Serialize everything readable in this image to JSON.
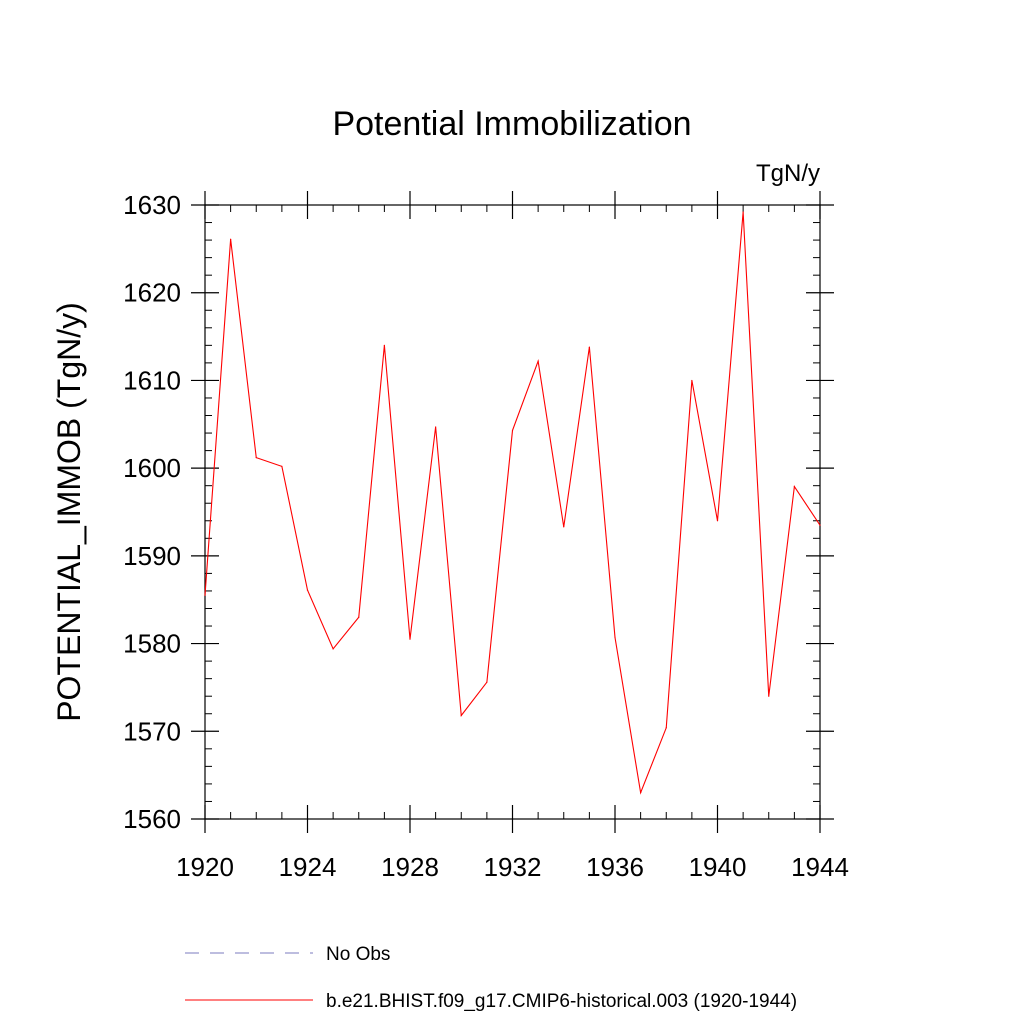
{
  "chart_data": {
    "type": "line",
    "title": "Potential Immobilization",
    "units_label": "TgN/y",
    "xlabel": "",
    "ylabel": "POTENTIAL_IMMOB  (TgN/y)",
    "xlim": [
      1920,
      1944
    ],
    "ylim": [
      1560,
      1630
    ],
    "x_ticks": [
      1920,
      1924,
      1928,
      1932,
      1936,
      1940,
      1944
    ],
    "y_ticks": [
      1560,
      1570,
      1580,
      1590,
      1600,
      1610,
      1620,
      1630
    ],
    "grid": false,
    "series": [
      {
        "name": "b.e21.BHIST.f09_g17.CMIP6-historical.003 (1920-1944)",
        "color": "#ff0000",
        "dash": "solid",
        "x": [
          1920,
          1921,
          1922,
          1923,
          1924,
          1925,
          1926,
          1927,
          1928,
          1929,
          1930,
          1931,
          1932,
          1933,
          1934,
          1935,
          1936,
          1937,
          1938,
          1939,
          1940,
          1941,
          1942,
          1943,
          1944
        ],
        "values": [
          1585.5,
          1626.1,
          1601.2,
          1600.2,
          1586.1,
          1579.4,
          1583.0,
          1614.0,
          1580.5,
          1604.7,
          1571.8,
          1575.6,
          1604.3,
          1612.2,
          1593.3,
          1613.8,
          1580.7,
          1563.0,
          1570.4,
          1610.0,
          1594.0,
          1629.2,
          1574.0,
          1597.9,
          1593.5
        ]
      }
    ],
    "legend": {
      "placement": "bottom",
      "entries": [
        {
          "label": "No Obs",
          "color": "#7b7bbf",
          "dash": "dashed"
        },
        {
          "label": "b.e21.BHIST.f09_g17.CMIP6-historical.003 (1920-1944)",
          "color": "#ff0000",
          "dash": "solid"
        }
      ]
    }
  }
}
